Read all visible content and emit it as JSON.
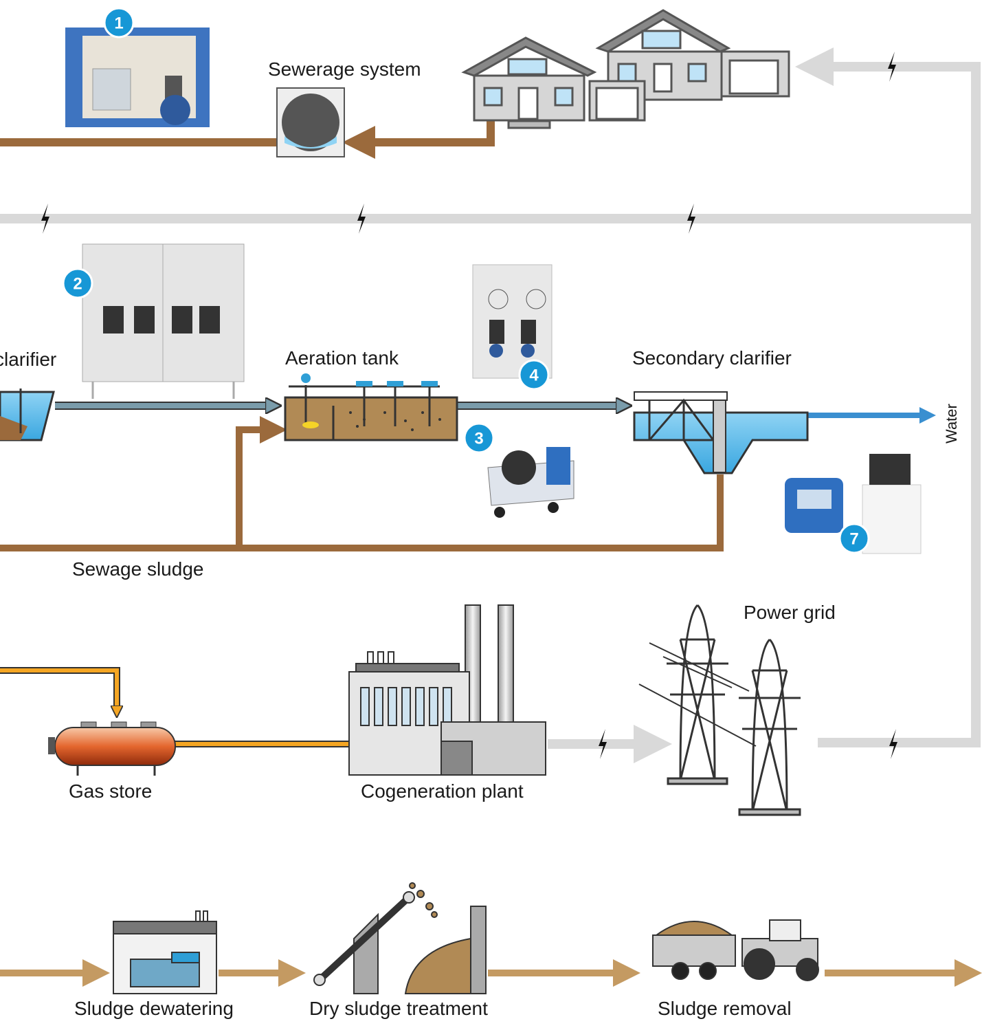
{
  "labels": {
    "sewerage_system": "Sewerage system",
    "primary_clarifier": "clarifier",
    "aeration_tank": "Aeration tank",
    "secondary_clarifier": "Secondary clarifier",
    "water": "Water",
    "sewage_sludge": "Sewage sludge",
    "power_grid": "Power grid",
    "gas_store": "Gas store",
    "cogeneration_plant": "Cogeneration plant",
    "sludge_dewatering": "Sludge dewatering",
    "dry_sludge_treatment": "Dry sludge treatment",
    "sludge_removal": "Sludge removal"
  },
  "badges": [
    "1",
    "2",
    "3",
    "4",
    "7"
  ]
}
